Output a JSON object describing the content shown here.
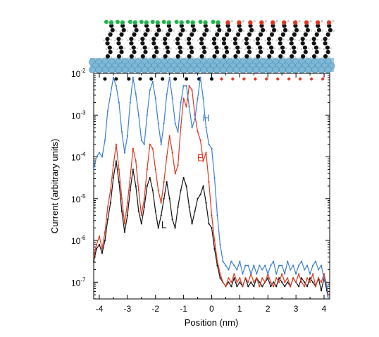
{
  "chart_data": {
    "type": "line",
    "xlabel": "Position (nm)",
    "ylabel": "Current (arbitrary units)",
    "xlim": [
      -4.2,
      4.2
    ],
    "ylim_log10": [
      -7.4,
      -2
    ],
    "yscale": "log",
    "x_ticks": [
      {
        "value": -4,
        "label": "-4"
      },
      {
        "value": -3,
        "label": "-3"
      },
      {
        "value": -2,
        "label": "-2"
      },
      {
        "value": -1,
        "label": "-1"
      },
      {
        "value": 0,
        "label": "0"
      },
      {
        "value": 1,
        "label": "1"
      },
      {
        "value": 2,
        "label": "2"
      },
      {
        "value": 3,
        "label": "3"
      },
      {
        "value": 4,
        "label": "4"
      }
    ],
    "y_ticks": [
      {
        "exp": -2,
        "base": "10",
        "sup": "-2"
      },
      {
        "exp": -3,
        "base": "10",
        "sup": "-3"
      },
      {
        "exp": -4,
        "base": "10",
        "sup": "-4"
      },
      {
        "exp": -5,
        "base": "10",
        "sup": "-5"
      },
      {
        "exp": -6,
        "base": "10",
        "sup": "-6"
      },
      {
        "exp": -7,
        "base": "10",
        "sup": "-7"
      }
    ],
    "series": [
      {
        "name": "H",
        "color": "#3a7fd5",
        "label_pos": [
          -0.2,
          -3.15
        ],
        "points": [
          [
            -4.2,
            -4.3
          ],
          [
            -4.1,
            -4.0
          ],
          [
            -4.0,
            -3.9
          ],
          [
            -3.9,
            -4.0
          ],
          [
            -3.8,
            -3.6
          ],
          [
            -3.7,
            -2.9
          ],
          [
            -3.6,
            -2.5
          ],
          [
            -3.5,
            -2.1
          ],
          [
            -3.4,
            -2.3
          ],
          [
            -3.3,
            -2.7
          ],
          [
            -3.2,
            -3.4
          ],
          [
            -3.1,
            -3.9
          ],
          [
            -3.0,
            -3.5
          ],
          [
            -2.9,
            -2.7
          ],
          [
            -2.8,
            -2.1
          ],
          [
            -2.7,
            -2.5
          ],
          [
            -2.6,
            -3.0
          ],
          [
            -2.5,
            -3.6
          ],
          [
            -2.4,
            -3.7
          ],
          [
            -2.3,
            -3.0
          ],
          [
            -2.2,
            -2.4
          ],
          [
            -2.1,
            -2.2
          ],
          [
            -2.0,
            -2.6
          ],
          [
            -1.9,
            -3.2
          ],
          [
            -1.8,
            -3.7
          ],
          [
            -1.7,
            -3.2
          ],
          [
            -1.6,
            -2.5
          ],
          [
            -1.5,
            -2.1
          ],
          [
            -1.4,
            -2.6
          ],
          [
            -1.3,
            -3.2
          ],
          [
            -1.2,
            -3.4
          ],
          [
            -1.1,
            -2.7
          ],
          [
            -1.0,
            -2.3
          ],
          [
            -0.9,
            -2.3
          ],
          [
            -0.8,
            -2.8
          ],
          [
            -0.7,
            -3.3
          ],
          [
            -0.6,
            -3.1
          ],
          [
            -0.5,
            -2.6
          ],
          [
            -0.4,
            -2.1
          ],
          [
            -0.3,
            -2.6
          ],
          [
            -0.2,
            -3.3
          ],
          [
            -0.1,
            -3.7
          ],
          [
            0.0,
            -3.8
          ],
          [
            0.1,
            -4.5
          ],
          [
            0.2,
            -5.4
          ],
          [
            0.3,
            -6.1
          ],
          [
            0.4,
            -6.5
          ],
          [
            0.5,
            -6.6
          ],
          [
            0.6,
            -6.7
          ],
          [
            0.7,
            -6.5
          ],
          [
            0.8,
            -6.6
          ],
          [
            0.9,
            -6.7
          ],
          [
            1.0,
            -6.5
          ],
          [
            1.1,
            -6.8
          ],
          [
            1.2,
            -6.6
          ],
          [
            1.3,
            -6.6
          ],
          [
            1.4,
            -6.8
          ],
          [
            1.5,
            -6.6
          ],
          [
            1.6,
            -6.8
          ],
          [
            1.7,
            -6.6
          ],
          [
            1.8,
            -6.7
          ],
          [
            1.9,
            -6.6
          ],
          [
            2.0,
            -6.8
          ],
          [
            2.1,
            -6.6
          ],
          [
            2.2,
            -6.5
          ],
          [
            2.3,
            -6.8
          ],
          [
            2.4,
            -6.6
          ],
          [
            2.5,
            -6.6
          ],
          [
            2.6,
            -6.8
          ],
          [
            2.7,
            -6.5
          ],
          [
            2.8,
            -6.7
          ],
          [
            2.9,
            -6.6
          ],
          [
            3.0,
            -6.8
          ],
          [
            3.1,
            -6.6
          ],
          [
            3.2,
            -6.5
          ],
          [
            3.3,
            -6.7
          ],
          [
            3.4,
            -6.6
          ],
          [
            3.5,
            -6.8
          ],
          [
            3.6,
            -6.6
          ],
          [
            3.7,
            -6.5
          ],
          [
            3.8,
            -6.7
          ],
          [
            3.9,
            -6.6
          ],
          [
            4.0,
            -6.9
          ],
          [
            4.1,
            -7.1
          ],
          [
            4.15,
            -7.4
          ]
        ]
      },
      {
        "name": "E",
        "color": "#e0371e",
        "label_pos": [
          -0.4,
          -4.1
        ],
        "points": [
          [
            -4.2,
            -6.4
          ],
          [
            -4.1,
            -6.1
          ],
          [
            -4.0,
            -5.9
          ],
          [
            -3.9,
            -6.2
          ],
          [
            -3.8,
            -5.8
          ],
          [
            -3.7,
            -5.2
          ],
          [
            -3.6,
            -4.8
          ],
          [
            -3.5,
            -4.2
          ],
          [
            -3.4,
            -3.7
          ],
          [
            -3.3,
            -4.3
          ],
          [
            -3.2,
            -5.0
          ],
          [
            -3.1,
            -5.6
          ],
          [
            -3.0,
            -5.1
          ],
          [
            -2.9,
            -4.5
          ],
          [
            -2.8,
            -3.8
          ],
          [
            -2.7,
            -4.1
          ],
          [
            -2.6,
            -4.8
          ],
          [
            -2.5,
            -5.4
          ],
          [
            -2.4,
            -5.0
          ],
          [
            -2.3,
            -4.3
          ],
          [
            -2.2,
            -3.7
          ],
          [
            -2.1,
            -3.8
          ],
          [
            -2.0,
            -4.3
          ],
          [
            -1.9,
            -4.8
          ],
          [
            -1.8,
            -5.1
          ],
          [
            -1.7,
            -4.6
          ],
          [
            -1.6,
            -4.0
          ],
          [
            -1.5,
            -3.5
          ],
          [
            -1.4,
            -3.9
          ],
          [
            -1.3,
            -4.4
          ],
          [
            -1.2,
            -4.2
          ],
          [
            -1.1,
            -3.3
          ],
          [
            -1.0,
            -2.6
          ],
          [
            -0.9,
            -2.8
          ],
          [
            -0.8,
            -2.3
          ],
          [
            -0.7,
            -2.4
          ],
          [
            -0.6,
            -3.0
          ],
          [
            -0.5,
            -3.4
          ],
          [
            -0.4,
            -3.6
          ],
          [
            -0.3,
            -4.1
          ],
          [
            -0.2,
            -3.9
          ],
          [
            -0.1,
            -4.6
          ],
          [
            0.0,
            -5.4
          ],
          [
            0.1,
            -6.0
          ],
          [
            0.2,
            -6.5
          ],
          [
            0.3,
            -6.8
          ],
          [
            0.4,
            -7.0
          ],
          [
            0.5,
            -7.1
          ],
          [
            0.6,
            -6.9
          ],
          [
            0.7,
            -7.0
          ],
          [
            0.8,
            -6.8
          ],
          [
            0.9,
            -7.0
          ],
          [
            1.0,
            -6.9
          ],
          [
            1.1,
            -7.1
          ],
          [
            1.2,
            -6.9
          ],
          [
            1.3,
            -7.0
          ],
          [
            1.4,
            -6.8
          ],
          [
            1.5,
            -7.0
          ],
          [
            1.6,
            -6.9
          ],
          [
            1.7,
            -7.1
          ],
          [
            1.8,
            -6.9
          ],
          [
            1.9,
            -7.0
          ],
          [
            2.0,
            -6.8
          ],
          [
            2.1,
            -7.0
          ],
          [
            2.2,
            -7.1
          ],
          [
            2.3,
            -6.9
          ],
          [
            2.4,
            -7.0
          ],
          [
            2.5,
            -6.8
          ],
          [
            2.6,
            -7.0
          ],
          [
            2.7,
            -6.9
          ],
          [
            2.8,
            -7.1
          ],
          [
            2.9,
            -6.9
          ],
          [
            3.0,
            -7.0
          ],
          [
            3.1,
            -6.8
          ],
          [
            3.2,
            -7.0
          ],
          [
            3.3,
            -7.1
          ],
          [
            3.4,
            -6.9
          ],
          [
            3.5,
            -7.0
          ],
          [
            3.6,
            -6.8
          ],
          [
            3.7,
            -7.1
          ],
          [
            3.8,
            -6.9
          ],
          [
            3.9,
            -7.0
          ],
          [
            4.0,
            -6.8
          ],
          [
            4.1,
            -7.1
          ],
          [
            4.15,
            -7.3
          ]
        ]
      },
      {
        "name": "L",
        "color": "#111111",
        "label_pos": [
          -1.7,
          -5.7
        ],
        "points": [
          [
            -4.2,
            -6.5
          ],
          [
            -4.1,
            -6.2
          ],
          [
            -4.0,
            -6.1
          ],
          [
            -3.9,
            -6.3
          ],
          [
            -3.8,
            -6.0
          ],
          [
            -3.7,
            -5.5
          ],
          [
            -3.6,
            -5.1
          ],
          [
            -3.5,
            -4.5
          ],
          [
            -3.4,
            -4.1
          ],
          [
            -3.3,
            -4.6
          ],
          [
            -3.2,
            -5.3
          ],
          [
            -3.1,
            -5.8
          ],
          [
            -3.0,
            -5.4
          ],
          [
            -2.9,
            -4.8
          ],
          [
            -2.8,
            -4.3
          ],
          [
            -2.7,
            -4.7
          ],
          [
            -2.6,
            -5.3
          ],
          [
            -2.5,
            -5.6
          ],
          [
            -2.4,
            -5.2
          ],
          [
            -2.3,
            -4.7
          ],
          [
            -2.2,
            -4.5
          ],
          [
            -2.1,
            -4.8
          ],
          [
            -2.0,
            -5.3
          ],
          [
            -1.9,
            -5.7
          ],
          [
            -1.8,
            -5.4
          ],
          [
            -1.7,
            -5.0
          ],
          [
            -1.6,
            -4.6
          ],
          [
            -1.5,
            -5.0
          ],
          [
            -1.4,
            -5.5
          ],
          [
            -1.3,
            -5.7
          ],
          [
            -1.2,
            -5.2
          ],
          [
            -1.1,
            -4.8
          ],
          [
            -1.0,
            -4.5
          ],
          [
            -0.9,
            -4.7
          ],
          [
            -0.8,
            -5.2
          ],
          [
            -0.7,
            -5.6
          ],
          [
            -0.6,
            -5.3
          ],
          [
            -0.5,
            -5.0
          ],
          [
            -0.4,
            -4.9
          ],
          [
            -0.3,
            -4.7
          ],
          [
            -0.2,
            -5.1
          ],
          [
            -0.1,
            -5.6
          ],
          [
            0.0,
            -5.7
          ],
          [
            0.1,
            -6.2
          ],
          [
            0.2,
            -6.6
          ],
          [
            0.3,
            -6.9
          ],
          [
            0.4,
            -7.0
          ],
          [
            0.5,
            -7.1
          ],
          [
            0.6,
            -7.0
          ],
          [
            0.7,
            -7.1
          ],
          [
            0.8,
            -6.9
          ],
          [
            0.9,
            -7.1
          ],
          [
            1.0,
            -7.0
          ],
          [
            1.1,
            -7.1
          ],
          [
            1.2,
            -6.9
          ],
          [
            1.3,
            -7.1
          ],
          [
            1.4,
            -7.0
          ],
          [
            1.5,
            -7.1
          ],
          [
            1.6,
            -6.9
          ],
          [
            1.7,
            -7.0
          ],
          [
            1.8,
            -7.1
          ],
          [
            1.9,
            -7.0
          ],
          [
            2.0,
            -6.9
          ],
          [
            2.1,
            -7.1
          ],
          [
            2.2,
            -7.0
          ],
          [
            2.3,
            -7.1
          ],
          [
            2.4,
            -6.9
          ],
          [
            2.5,
            -7.0
          ],
          [
            2.6,
            -7.1
          ],
          [
            2.7,
            -7.0
          ],
          [
            2.8,
            -7.1
          ],
          [
            2.9,
            -6.9
          ],
          [
            3.0,
            -7.0
          ],
          [
            3.1,
            -7.1
          ],
          [
            3.2,
            -6.9
          ],
          [
            3.3,
            -7.0
          ],
          [
            3.4,
            -7.1
          ],
          [
            3.5,
            -6.9
          ],
          [
            3.6,
            -7.0
          ],
          [
            3.7,
            -7.1
          ],
          [
            3.8,
            -6.9
          ],
          [
            3.9,
            -7.2
          ],
          [
            4.0,
            -6.9
          ],
          [
            4.1,
            -7.2
          ],
          [
            4.15,
            -7.4
          ]
        ]
      }
    ],
    "marker_rows": {
      "black_dots": [
        -3.8,
        -3.4,
        -2.95,
        -2.55,
        -2.15,
        -1.75,
        -1.3,
        -0.9,
        -0.45,
        0.0
      ],
      "red_diamonds": [
        0.35,
        0.75,
        1.15,
        1.55,
        1.95,
        2.35,
        2.75,
        3.15,
        3.55,
        3.95
      ],
      "black_color": "#000000",
      "red_color": "#e0371e"
    },
    "molecule_strip": {
      "surface_color": "#7fb8d6",
      "green_tip_color": "#22b14c",
      "red_tip_color": "#e0371e",
      "chain_color": "#111111"
    }
  }
}
